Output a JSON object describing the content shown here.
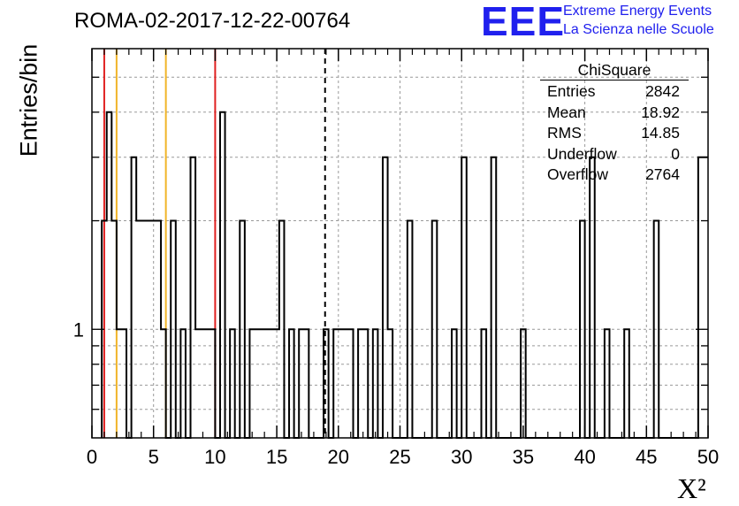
{
  "title": "ROMA-02-2017-12-22-00764",
  "logo": {
    "mark": "EEE",
    "line1": "Extreme Energy Events",
    "line2": "La Scienza nelle Scuole"
  },
  "stats": {
    "name": "ChiSquare",
    "rows": [
      {
        "label": "Entries",
        "value": "2842"
      },
      {
        "label": "Mean",
        "value": "18.92"
      },
      {
        "label": "RMS",
        "value": "14.85"
      },
      {
        "label": "Underflow",
        "value": "0"
      },
      {
        "label": "Overflow",
        "value": "2764"
      }
    ]
  },
  "colors": {
    "red": "#e02020",
    "orange": "#f0b428",
    "grid": "#999999"
  },
  "chart_data": {
    "type": "histogram",
    "xlabel": "X²",
    "ylabel": "Entries/bin",
    "xlim": [
      0,
      50
    ],
    "yscale": "log",
    "ylim": [
      0.5,
      6
    ],
    "grid": true,
    "xticks": [
      0,
      5,
      10,
      15,
      20,
      25,
      30,
      35,
      40,
      45,
      50
    ],
    "yticks": [
      {
        "value": 1,
        "label": "1"
      }
    ],
    "bin_width": 0.4,
    "bins": [
      {
        "x": 0.8,
        "v": 2
      },
      {
        "x": 1.2,
        "v": 4
      },
      {
        "x": 1.6,
        "v": 2
      },
      {
        "x": 2.0,
        "v": 1
      },
      {
        "x": 2.4,
        "v": 1
      },
      {
        "x": 2.8,
        "v": 0
      },
      {
        "x": 3.2,
        "v": 3
      },
      {
        "x": 3.6,
        "v": 2
      },
      {
        "x": 4.0,
        "v": 2
      },
      {
        "x": 4.4,
        "v": 2
      },
      {
        "x": 4.8,
        "v": 2
      },
      {
        "x": 5.2,
        "v": 2
      },
      {
        "x": 5.6,
        "v": 1
      },
      {
        "x": 6.0,
        "v": 0
      },
      {
        "x": 6.4,
        "v": 2
      },
      {
        "x": 6.8,
        "v": 0
      },
      {
        "x": 7.2,
        "v": 1
      },
      {
        "x": 7.6,
        "v": 0
      },
      {
        "x": 8.0,
        "v": 3
      },
      {
        "x": 8.4,
        "v": 1
      },
      {
        "x": 8.8,
        "v": 1
      },
      {
        "x": 9.2,
        "v": 1
      },
      {
        "x": 9.6,
        "v": 1
      },
      {
        "x": 10.0,
        "v": 0
      },
      {
        "x": 10.4,
        "v": 4
      },
      {
        "x": 10.8,
        "v": 0
      },
      {
        "x": 11.2,
        "v": 1
      },
      {
        "x": 11.6,
        "v": 0
      },
      {
        "x": 12.0,
        "v": 2
      },
      {
        "x": 12.4,
        "v": 0
      },
      {
        "x": 12.8,
        "v": 1
      },
      {
        "x": 13.2,
        "v": 1
      },
      {
        "x": 13.6,
        "v": 1
      },
      {
        "x": 14.0,
        "v": 1
      },
      {
        "x": 14.4,
        "v": 1
      },
      {
        "x": 14.8,
        "v": 1
      },
      {
        "x": 15.2,
        "v": 2
      },
      {
        "x": 15.6,
        "v": 0
      },
      {
        "x": 16.0,
        "v": 1
      },
      {
        "x": 16.4,
        "v": 0
      },
      {
        "x": 16.8,
        "v": 1
      },
      {
        "x": 17.2,
        "v": 1
      },
      {
        "x": 18.8,
        "v": 1
      },
      {
        "x": 19.2,
        "v": 0
      },
      {
        "x": 19.6,
        "v": 1
      },
      {
        "x": 20.0,
        "v": 1
      },
      {
        "x": 20.4,
        "v": 1
      },
      {
        "x": 20.8,
        "v": 1
      },
      {
        "x": 21.2,
        "v": 0
      },
      {
        "x": 21.6,
        "v": 1
      },
      {
        "x": 22.0,
        "v": 1
      },
      {
        "x": 22.4,
        "v": 0
      },
      {
        "x": 22.8,
        "v": 1
      },
      {
        "x": 23.2,
        "v": 0
      },
      {
        "x": 23.6,
        "v": 3
      },
      {
        "x": 24.0,
        "v": 1
      },
      {
        "x": 24.4,
        "v": 0
      },
      {
        "x": 25.6,
        "v": 2
      },
      {
        "x": 27.6,
        "v": 2
      },
      {
        "x": 29.2,
        "v": 1
      },
      {
        "x": 29.6,
        "v": 0
      },
      {
        "x": 30.0,
        "v": 3
      },
      {
        "x": 30.4,
        "v": 0
      },
      {
        "x": 31.6,
        "v": 1
      },
      {
        "x": 32.0,
        "v": 0
      },
      {
        "x": 32.4,
        "v": 3
      },
      {
        "x": 34.8,
        "v": 1
      },
      {
        "x": 39.6,
        "v": 2
      },
      {
        "x": 40.0,
        "v": 0
      },
      {
        "x": 40.4,
        "v": 3
      },
      {
        "x": 40.8,
        "v": 0
      },
      {
        "x": 41.6,
        "v": 1
      },
      {
        "x": 43.2,
        "v": 1
      },
      {
        "x": 45.6,
        "v": 2
      },
      {
        "x": 49.2,
        "v": 3
      },
      {
        "x": 49.6,
        "v": 3
      }
    ],
    "vlines": [
      {
        "x": 1.0,
        "color": "red"
      },
      {
        "x": 2.0,
        "color": "orange"
      },
      {
        "x": 6.0,
        "color": "orange"
      },
      {
        "x": 10.0,
        "color": "red"
      },
      {
        "x": 18.92,
        "color": "black",
        "dashed": true
      }
    ]
  }
}
